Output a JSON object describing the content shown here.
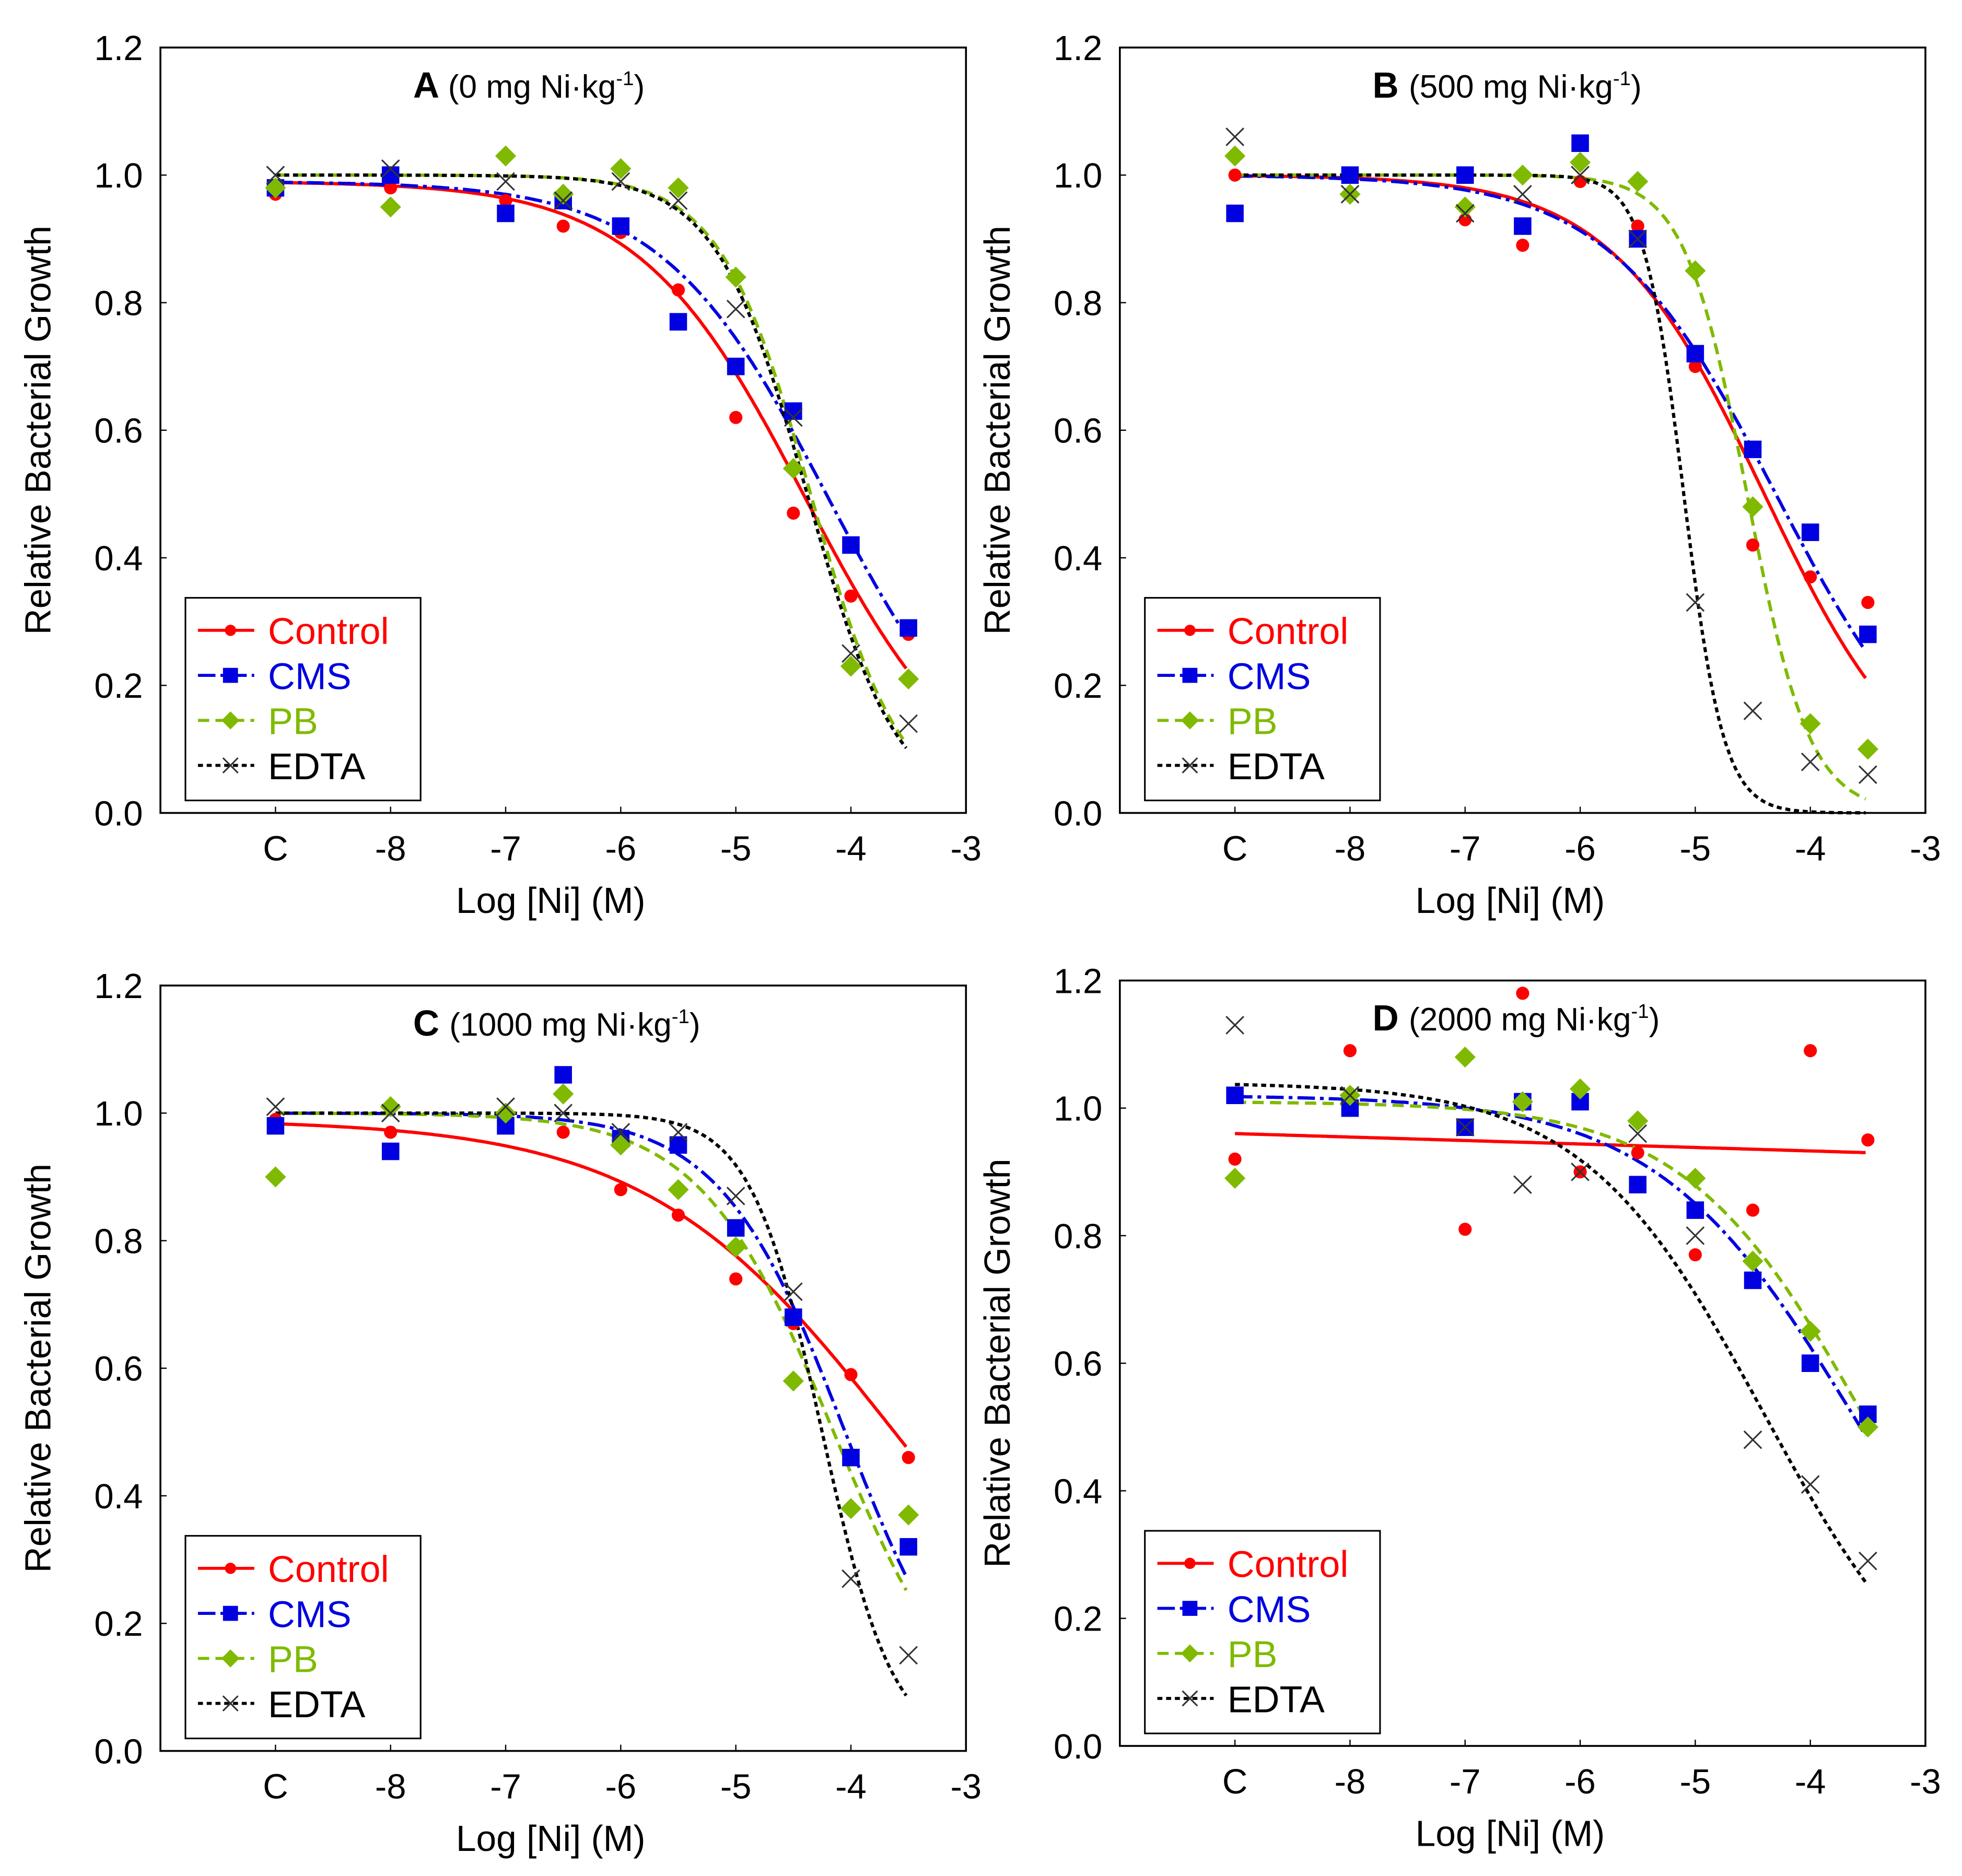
{
  "chart_data": [
    {
      "type": "scatter",
      "panel_letter": "A",
      "title_main": "(0 mg Ni·kg",
      "title_sup": "-1",
      "title_end": ")",
      "xlabel": "Log [Ni] (M)",
      "ylabel": "Relative Bacterial Growth",
      "xlim": [
        -10,
        -3
      ],
      "ylim": [
        0,
        1.2
      ],
      "xticks": [
        {
          "v": -9,
          "label": "C"
        },
        {
          "v": -8,
          "label": "-8"
        },
        {
          "v": -7,
          "label": "-7"
        },
        {
          "v": -6,
          "label": "-6"
        },
        {
          "v": -5,
          "label": "-5"
        },
        {
          "v": -4,
          "label": "-4"
        },
        {
          "v": -3,
          "label": "-3"
        }
      ],
      "yticks": [
        "0.0",
        "0.2",
        "0.4",
        "0.6",
        "0.8",
        "1.0",
        "1.2"
      ],
      "legend_position": "bottom-left",
      "x": [
        -9,
        -8,
        -7,
        -6.5,
        -6,
        -5.5,
        -5,
        -4.5,
        -4,
        -3.5
      ],
      "series": [
        {
          "name": "Control",
          "color": "#ff0000",
          "marker": "circle",
          "values": [
            0.97,
            0.98,
            0.96,
            0.92,
            0.91,
            0.82,
            0.62,
            0.47,
            0.34,
            0.28
          ],
          "fit": {
            "top": 0.99,
            "bottom": 0,
            "log_ec50": -4.4,
            "hill": 0.6
          }
        },
        {
          "name": "CMS",
          "color": "#0000e0",
          "marker": "square",
          "values": [
            0.98,
            1.0,
            0.94,
            0.96,
            0.92,
            0.77,
            0.7,
            0.63,
            0.42,
            0.29
          ],
          "fit": {
            "top": 0.99,
            "bottom": 0,
            "log_ec50": -4.2,
            "hill": 0.6
          }
        },
        {
          "name": "PB",
          "color": "#7fba00",
          "marker": "diamond",
          "values": [
            0.98,
            0.95,
            1.03,
            0.97,
            1.01,
            0.98,
            0.84,
            0.54,
            0.23,
            0.21
          ],
          "fit": {
            "top": 1.0,
            "bottom": 0,
            "log_ec50": -4.35,
            "hill": 1.1
          }
        },
        {
          "name": "EDTA",
          "color": "#000000",
          "marker": "x",
          "values": [
            1.0,
            1.01,
            0.99,
            0.96,
            0.99,
            0.96,
            0.79,
            0.62,
            0.25,
            0.14
          ],
          "fit": {
            "top": 1.0,
            "bottom": 0,
            "log_ec50": -4.38,
            "hill": 1.1
          }
        }
      ]
    },
    {
      "type": "scatter",
      "panel_letter": "B",
      "title_main": "(500 mg Ni·kg",
      "title_sup": "-1",
      "title_end": ")",
      "xlabel": "Log [Ni] (M)",
      "ylabel": "Relative Bacterial Growth",
      "xlim": [
        -10,
        -3
      ],
      "ylim": [
        0,
        1.2
      ],
      "xticks": [
        {
          "v": -9,
          "label": "C"
        },
        {
          "v": -8,
          "label": "-8"
        },
        {
          "v": -7,
          "label": "-7"
        },
        {
          "v": -6,
          "label": "-6"
        },
        {
          "v": -5,
          "label": "-5"
        },
        {
          "v": -4,
          "label": "-4"
        },
        {
          "v": -3,
          "label": "-3"
        }
      ],
      "yticks": [
        "0.0",
        "0.2",
        "0.4",
        "0.6",
        "0.8",
        "1.0",
        "1.2"
      ],
      "legend_position": "bottom-left",
      "x": [
        -9,
        -8,
        -7,
        -6.5,
        -6,
        -5.5,
        -5,
        -4.5,
        -4,
        -3.5
      ],
      "series": [
        {
          "name": "Control",
          "color": "#ff0000",
          "marker": "circle",
          "values": [
            1.0,
            0.97,
            0.93,
            0.89,
            0.99,
            0.92,
            0.7,
            0.42,
            0.37,
            0.33
          ],
          "fit": {
            "top": 1.0,
            "bottom": 0,
            "log_ec50": -4.4,
            "hill": 0.65
          }
        },
        {
          "name": "CMS",
          "color": "#0000e0",
          "marker": "square",
          "values": [
            0.94,
            1.0,
            1.0,
            0.92,
            1.05,
            0.9,
            0.72,
            0.57,
            0.44,
            0.28
          ],
          "fit": {
            "top": 1.0,
            "bottom": 0,
            "log_ec50": -4.3,
            "hill": 0.6
          }
        },
        {
          "name": "PB",
          "color": "#7fba00",
          "marker": "diamond",
          "values": [
            1.03,
            0.97,
            0.95,
            1.0,
            1.02,
            0.99,
            0.85,
            0.48,
            0.14,
            0.1
          ],
          "fit": {
            "top": 1.0,
            "bottom": 0,
            "log_ec50": -4.55,
            "hill": 1.6
          }
        },
        {
          "name": "EDTA",
          "color": "#000000",
          "marker": "x",
          "values": [
            1.06,
            0.97,
            0.94,
            0.97,
            1.0,
            0.9,
            0.33,
            0.16,
            0.08,
            0.06
          ],
          "fit": {
            "top": 1.0,
            "bottom": 0,
            "log_ec50": -5.1,
            "hill": 2.5
          }
        }
      ]
    },
    {
      "type": "scatter",
      "panel_letter": "C",
      "title_main": "(1000 mg Ni·kg",
      "title_sup": "-1",
      "title_end": ")",
      "xlabel": "Log [Ni] (M)",
      "ylabel": "Relative Bacterial Growth",
      "xlim": [
        -10,
        -3
      ],
      "ylim": [
        0,
        1.2
      ],
      "xticks": [
        {
          "v": -9,
          "label": "C"
        },
        {
          "v": -8,
          "label": "-8"
        },
        {
          "v": -7,
          "label": "-7"
        },
        {
          "v": -6,
          "label": "-6"
        },
        {
          "v": -5,
          "label": "-5"
        },
        {
          "v": -4,
          "label": "-4"
        },
        {
          "v": -3,
          "label": "-3"
        }
      ],
      "yticks": [
        "0.0",
        "0.2",
        "0.4",
        "0.6",
        "0.8",
        "1.0",
        "1.2"
      ],
      "legend_position": "bottom-left",
      "x": [
        -9,
        -8,
        -7,
        -6.5,
        -6,
        -5.5,
        -5,
        -4.5,
        -4,
        -3.5
      ],
      "series": [
        {
          "name": "Control",
          "color": "#ff0000",
          "marker": "circle",
          "values": [
            0.99,
            0.97,
            0.98,
            0.97,
            0.88,
            0.84,
            0.74,
            0.67,
            0.59,
            0.46
          ],
          "fit": {
            "top": 0.99,
            "bottom": 0,
            "log_ec50": -3.6,
            "hill": 0.4
          }
        },
        {
          "name": "CMS",
          "color": "#0000e0",
          "marker": "square",
          "values": [
            0.98,
            0.94,
            0.98,
            1.06,
            0.96,
            0.95,
            0.82,
            0.68,
            0.46,
            0.32
          ],
          "fit": {
            "top": 1.0,
            "bottom": 0,
            "log_ec50": -4.05,
            "hill": 0.8
          }
        },
        {
          "name": "PB",
          "color": "#7fba00",
          "marker": "diamond",
          "values": [
            0.9,
            1.01,
            1.0,
            1.03,
            0.95,
            0.88,
            0.79,
            0.58,
            0.38,
            0.37
          ],
          "fit": {
            "top": 1.0,
            "bottom": 0,
            "log_ec50": -4.15,
            "hill": 0.75
          }
        },
        {
          "name": "EDTA",
          "color": "#000000",
          "marker": "x",
          "values": [
            1.01,
            1.0,
            1.01,
            1.0,
            0.97,
            0.97,
            0.87,
            0.72,
            0.27,
            0.15
          ],
          "fit": {
            "top": 1.0,
            "bottom": 0,
            "log_ec50": -4.25,
            "hill": 1.4
          }
        }
      ]
    },
    {
      "type": "scatter",
      "panel_letter": "D",
      "title_main": "(2000 mg Ni·kg",
      "title_sup": "-1",
      "title_end": ")",
      "xlabel": "Log [Ni] (M)",
      "ylabel": "Relative Bacterial Growth",
      "xlim": [
        -10,
        -3
      ],
      "ylim": [
        0,
        1.2
      ],
      "xticks": [
        {
          "v": -9,
          "label": "C"
        },
        {
          "v": -8,
          "label": "-8"
        },
        {
          "v": -7,
          "label": "-7"
        },
        {
          "v": -6,
          "label": "-6"
        },
        {
          "v": -5,
          "label": "-5"
        },
        {
          "v": -4,
          "label": "-4"
        },
        {
          "v": -3,
          "label": "-3"
        }
      ],
      "yticks": [
        "0.0",
        "0.2",
        "0.4",
        "0.6",
        "0.8",
        "1.0",
        "1.2"
      ],
      "legend_position": "bottom-left",
      "x": [
        -9,
        -8,
        -7,
        -6.5,
        -6,
        -5.5,
        -5,
        -4.5,
        -4,
        -3.5
      ],
      "series": [
        {
          "name": "Control",
          "color": "#ff0000",
          "marker": "circle",
          "values": [
            0.92,
            1.09,
            0.81,
            1.18,
            0.9,
            0.93,
            0.77,
            0.84,
            1.09,
            0.95
          ],
          "fit": {
            "linear_intercept": 0.911,
            "linear_slope": -0.00545
          }
        },
        {
          "name": "CMS",
          "color": "#0000e0",
          "marker": "square",
          "values": [
            1.02,
            1.0,
            0.97,
            1.01,
            1.01,
            0.88,
            0.84,
            0.73,
            0.6,
            0.52
          ],
          "fit": {
            "top": 1.02,
            "bottom": 0,
            "log_ec50": -3.6,
            "hill": 0.5
          }
        },
        {
          "name": "PB",
          "color": "#7fba00",
          "marker": "diamond",
          "values": [
            0.89,
            1.02,
            1.08,
            1.01,
            1.03,
            0.98,
            0.89,
            0.76,
            0.65,
            0.5
          ],
          "fit": {
            "top": 1.01,
            "bottom": 0,
            "log_ec50": -3.5,
            "hill": 0.55
          }
        },
        {
          "name": "EDTA",
          "color": "#000000",
          "marker": "x",
          "values": [
            1.13,
            1.02,
            0.97,
            0.88,
            0.9,
            0.96,
            0.8,
            0.48,
            0.41,
            0.29
          ],
          "fit": {
            "top": 1.04,
            "bottom": 0,
            "log_ec50": -4.4,
            "hill": 0.55
          }
        }
      ]
    }
  ]
}
